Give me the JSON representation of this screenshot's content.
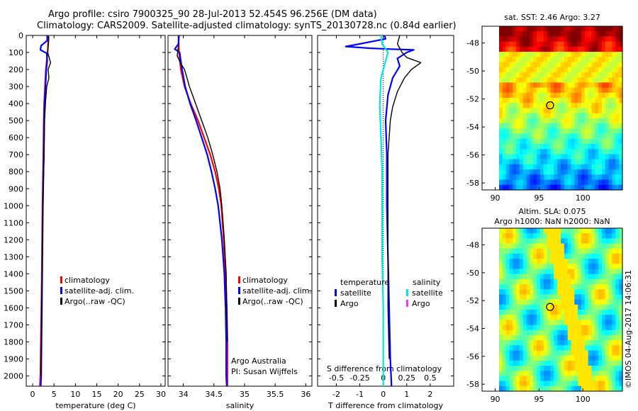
{
  "header": {
    "line1": "Argo profile: csiro 7900325_90 28-Jul-2013 52.454S 96.256E (DM data)",
    "line2": "Climatology: CARS2009. Satellite-adjusted climatology: synTS_20130728.nc (0.84d earlier)"
  },
  "colors": {
    "climatology": "#ff0000",
    "satellite": "#0000ff",
    "argo": "#000000",
    "sat_salinity": "#00e5ee",
    "argo_salinity": "#ff33ff"
  },
  "chart_data": [
    {
      "type": "line",
      "panel": "temperature",
      "xlabel": "temperature (deg C)",
      "ylabel": "",
      "xlim": [
        -1.5,
        31
      ],
      "ylim": [
        2060,
        0
      ],
      "xticks": [
        0,
        5,
        10,
        15,
        20,
        25,
        30
      ],
      "yticks": [
        0,
        100,
        200,
        300,
        400,
        500,
        600,
        700,
        800,
        900,
        1000,
        1100,
        1200,
        1300,
        1400,
        1500,
        1600,
        1700,
        1800,
        1900,
        2000
      ],
      "legend": [
        "climatology",
        "satellite-adj. clim.",
        "Argo(..raw -QC)"
      ],
      "series": [
        {
          "name": "climatology",
          "color": "#ff0000",
          "points": [
            [
              3.6,
              0
            ],
            [
              3.6,
              50
            ],
            [
              3.5,
              100
            ],
            [
              3.3,
              150
            ],
            [
              3.1,
              200
            ],
            [
              2.9,
              300
            ],
            [
              2.7,
              400
            ],
            [
              2.6,
              500
            ],
            [
              2.5,
              700
            ],
            [
              2.3,
              1000
            ],
            [
              2.1,
              1500
            ],
            [
              1.8,
              2000
            ],
            [
              1.7,
              2060
            ]
          ]
        },
        {
          "name": "satellite-adj. clim.",
          "color": "#0000ff",
          "points": [
            [
              3.4,
              0
            ],
            [
              3.4,
              30
            ],
            [
              2.0,
              60
            ],
            [
              1.8,
              85
            ],
            [
              3.3,
              105
            ],
            [
              3.4,
              150
            ],
            [
              3.2,
              200
            ],
            [
              3.0,
              300
            ],
            [
              2.8,
              400
            ],
            [
              2.7,
              500
            ],
            [
              2.6,
              700
            ],
            [
              2.4,
              1000
            ],
            [
              2.2,
              1500
            ],
            [
              2.0,
              2000
            ],
            [
              1.9,
              2060
            ]
          ]
        },
        {
          "name": "Argo(..raw -QC)",
          "color": "#000000",
          "points": [
            [
              3.8,
              5
            ],
            [
              3.7,
              50
            ],
            [
              3.5,
              100
            ],
            [
              4.2,
              160
            ],
            [
              3.6,
              200
            ],
            [
              3.8,
              250
            ],
            [
              3.3,
              300
            ],
            [
              3.0,
              400
            ],
            [
              2.8,
              500
            ],
            [
              2.7,
              700
            ],
            [
              2.4,
              1000
            ],
            [
              2.2,
              1500
            ],
            [
              1.9,
              2000
            ]
          ]
        }
      ]
    },
    {
      "type": "line",
      "panel": "salinity",
      "xlabel": "salinity",
      "ylabel": "",
      "xlim": [
        33.75,
        36.1
      ],
      "ylim": [
        2060,
        0
      ],
      "xticks": [
        34,
        34.5,
        35,
        35.5,
        36
      ],
      "legend": [
        "climatology",
        "satellite-adj. clim.",
        "Argo(..raw -QC)"
      ],
      "annotations": [
        "Argo Australia",
        "PI: Susan Wijffels"
      ],
      "series": [
        {
          "name": "climatology",
          "color": "#ff0000",
          "points": [
            [
              33.92,
              0
            ],
            [
              33.93,
              100
            ],
            [
              33.96,
              200
            ],
            [
              34.02,
              300
            ],
            [
              34.12,
              400
            ],
            [
              34.24,
              500
            ],
            [
              34.34,
              600
            ],
            [
              34.44,
              700
            ],
            [
              34.52,
              800
            ],
            [
              34.58,
              900
            ],
            [
              34.62,
              1000
            ],
            [
              34.66,
              1200
            ],
            [
              34.69,
              1400
            ],
            [
              34.71,
              1600
            ],
            [
              34.72,
              1800
            ],
            [
              34.72,
              2060
            ]
          ]
        },
        {
          "name": "satellite-adj. clim.",
          "color": "#0000ff",
          "points": [
            [
              33.93,
              0
            ],
            [
              33.92,
              50
            ],
            [
              33.86,
              80
            ],
            [
              33.94,
              100
            ],
            [
              33.96,
              150
            ],
            [
              33.98,
              200
            ],
            [
              34.03,
              300
            ],
            [
              34.11,
              400
            ],
            [
              34.21,
              500
            ],
            [
              34.3,
              600
            ],
            [
              34.39,
              700
            ],
            [
              34.46,
              800
            ],
            [
              34.52,
              900
            ],
            [
              34.57,
              1000
            ],
            [
              34.63,
              1200
            ],
            [
              34.67,
              1400
            ],
            [
              34.69,
              1600
            ],
            [
              34.7,
              1800
            ],
            [
              34.7,
              2000
            ],
            [
              34.71,
              2060
            ]
          ]
        },
        {
          "name": "Argo(..raw -QC)",
          "color": "#000000",
          "points": [
            [
              33.92,
              60
            ],
            [
              33.9,
              120
            ],
            [
              33.95,
              160
            ],
            [
              34.02,
              200
            ],
            [
              34.06,
              250
            ],
            [
              34.1,
              300
            ],
            [
              34.2,
              400
            ],
            [
              34.3,
              500
            ],
            [
              34.4,
              600
            ],
            [
              34.48,
              700
            ],
            [
              34.55,
              800
            ],
            [
              34.6,
              900
            ],
            [
              34.63,
              1000
            ],
            [
              34.67,
              1200
            ],
            [
              34.7,
              1400
            ],
            [
              34.71,
              1600
            ],
            [
              34.72,
              1800
            ]
          ]
        }
      ]
    },
    {
      "type": "line",
      "panel": "difference",
      "xlabel": "T difference from climatology",
      "top_axis_label": "S difference from climatology",
      "xlim": [
        -2.8,
        3.0
      ],
      "ylim": [
        2060,
        0
      ],
      "xticks": [
        -2,
        -1,
        0,
        1,
        2
      ],
      "top_ticks": [
        "-0.5",
        "-0.25",
        "0",
        "0.25",
        "0.5"
      ],
      "legend": {
        "temperature": [
          "satellite",
          "Argo"
        ],
        "salinity": [
          "satellite",
          "Argo"
        ],
        "temperature_title": "temperature",
        "salinity_title": "salinity"
      },
      "series": [
        {
          "name": "temperature satellite",
          "color": "#0000ff",
          "points": [
            [
              0.05,
              0
            ],
            [
              0.1,
              20
            ],
            [
              -1.2,
              55
            ],
            [
              -1.6,
              65
            ],
            [
              -0.6,
              75
            ],
            [
              0.2,
              80
            ],
            [
              1.3,
              85
            ],
            [
              1.0,
              100
            ],
            [
              0.6,
              135
            ],
            [
              0.7,
              180
            ],
            [
              0.4,
              250
            ],
            [
              0.2,
              350
            ],
            [
              0.1,
              500
            ],
            [
              0.15,
              700
            ],
            [
              0.15,
              1000
            ],
            [
              0.2,
              1300
            ],
            [
              0.25,
              1600
            ],
            [
              0.3,
              1900
            ],
            [
              0.35,
              2060
            ]
          ]
        },
        {
          "name": "temperature Argo",
          "color": "#000000",
          "points": [
            [
              0.7,
              0
            ],
            [
              0.6,
              50
            ],
            [
              0.8,
              100
            ],
            [
              1.0,
              130
            ],
            [
              1.6,
              160
            ],
            [
              1.2,
              200
            ],
            [
              0.9,
              250
            ],
            [
              0.6,
              330
            ],
            [
              0.4,
              420
            ],
            [
              0.3,
              500
            ],
            [
              0.2,
              700
            ],
            [
              0.2,
              1000
            ],
            [
              0.2,
              1300
            ],
            [
              0.2,
              1600
            ],
            [
              0.25,
              1900
            ]
          ]
        },
        {
          "name": "salinity satellite",
          "color": "#00e5ee",
          "points": [
            [
              -0.1,
              0
            ],
            [
              -0.05,
              50
            ],
            [
              0.2,
              100
            ],
            [
              0.1,
              150
            ],
            [
              -0.1,
              250
            ],
            [
              -0.15,
              400
            ],
            [
              -0.1,
              600
            ],
            [
              -0.05,
              800
            ],
            [
              -0.05,
              1000
            ],
            [
              -0.05,
              1300
            ],
            [
              0.0,
              1600
            ],
            [
              0.0,
              1900
            ],
            [
              0.0,
              2060
            ]
          ]
        }
      ]
    },
    {
      "type": "heatmap",
      "panel": "satellite SST map",
      "title": "sat. SST: 2.46  Argo: 3.27",
      "xlim": [
        88.5,
        104.5
      ],
      "ylim": [
        -58.5,
        -46.8
      ],
      "xticks": [
        90,
        95,
        100
      ],
      "yticks": [
        -48,
        -50,
        -52,
        -54,
        -56,
        -58
      ],
      "marker": {
        "lon": 96.256,
        "lat": -52.454
      }
    },
    {
      "type": "heatmap",
      "panel": "altimetry SLA map",
      "title": "Altim. SLA: 0.075",
      "subtitle": "Argo h1000: NaN h2000: NaN",
      "xlim": [
        88.5,
        104.5
      ],
      "ylim": [
        -58.5,
        -46.8
      ],
      "xticks": [
        90,
        95,
        100
      ],
      "yticks": [
        -48,
        -50,
        -52,
        -54,
        -56,
        -58
      ],
      "marker": {
        "lon": 96.256,
        "lat": -52.454
      },
      "stamp": "©IMOS 04-Aug-2017 14:06:31"
    }
  ]
}
